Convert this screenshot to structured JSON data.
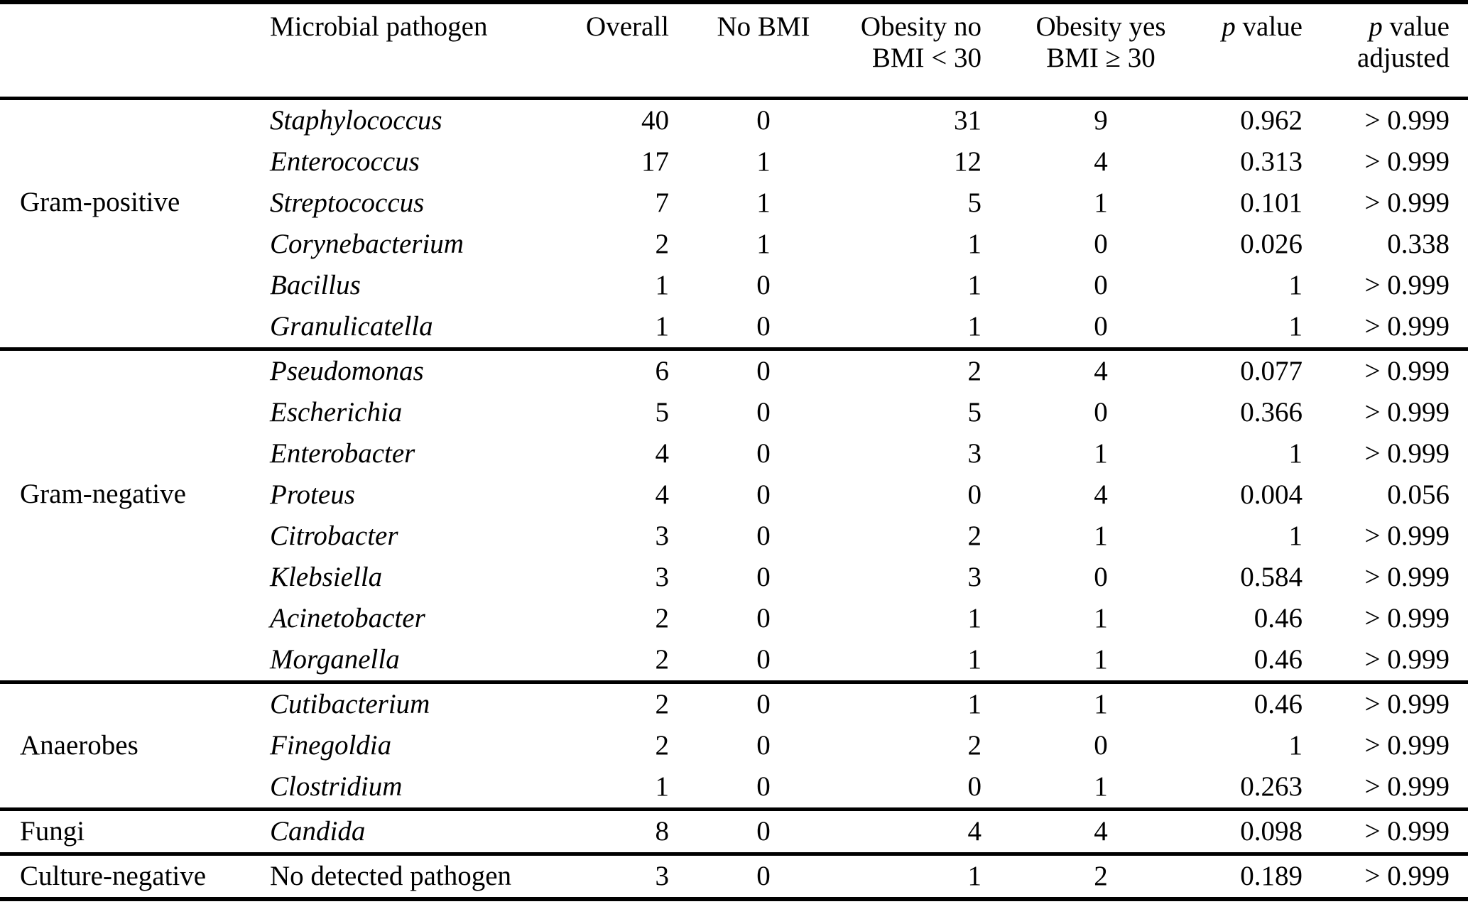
{
  "table": {
    "headers": {
      "pathogen": "Microbial pathogen",
      "overall": "Overall",
      "no_bmi": "No BMI",
      "obesity_no": {
        "line1": "Obesity no",
        "line2": "BMI < 30"
      },
      "obesity_yes": {
        "line1": "Obesity yes",
        "line2": "BMI ≥ 30"
      },
      "p_value": {
        "italic": "p",
        "rest": " value"
      },
      "p_value_adjusted": {
        "italic": "p",
        "rest": " value",
        "line2": "adjusted"
      }
    },
    "groups": [
      {
        "category": "Gram-positive",
        "rows": [
          {
            "pathogen": "Staphylococcus",
            "italic": true,
            "overall": "40",
            "no_bmi": "0",
            "obesity_no": "31",
            "obesity_yes": "9",
            "p": "0.962",
            "p_adj": "> 0.999"
          },
          {
            "pathogen": "Enterococcus",
            "italic": true,
            "overall": "17",
            "no_bmi": "1",
            "obesity_no": "12",
            "obesity_yes": "4",
            "p": "0.313",
            "p_adj": "> 0.999"
          },
          {
            "pathogen": "Streptococcus",
            "italic": true,
            "overall": "7",
            "no_bmi": "1",
            "obesity_no": "5",
            "obesity_yes": "1",
            "p": "0.101",
            "p_adj": "> 0.999"
          },
          {
            "pathogen": "Corynebacterium",
            "italic": true,
            "overall": "2",
            "no_bmi": "1",
            "obesity_no": "1",
            "obesity_yes": "0",
            "p": "0.026",
            "p_adj": "0.338"
          },
          {
            "pathogen": "Bacillus",
            "italic": true,
            "overall": "1",
            "no_bmi": "0",
            "obesity_no": "1",
            "obesity_yes": "0",
            "p": "1",
            "p_adj": "> 0.999"
          },
          {
            "pathogen": "Granulicatella",
            "italic": true,
            "overall": "1",
            "no_bmi": "0",
            "obesity_no": "1",
            "obesity_yes": "0",
            "p": "1",
            "p_adj": "> 0.999"
          }
        ]
      },
      {
        "category": "Gram-negative",
        "rows": [
          {
            "pathogen": "Pseudomonas",
            "italic": true,
            "overall": "6",
            "no_bmi": "0",
            "obesity_no": "2",
            "obesity_yes": "4",
            "p": "0.077",
            "p_adj": "> 0.999"
          },
          {
            "pathogen": "Escherichia",
            "italic": true,
            "overall": "5",
            "no_bmi": "0",
            "obesity_no": "5",
            "obesity_yes": "0",
            "p": "0.366",
            "p_adj": "> 0.999"
          },
          {
            "pathogen": "Enterobacter",
            "italic": true,
            "overall": "4",
            "no_bmi": "0",
            "obesity_no": "3",
            "obesity_yes": "1",
            "p": "1",
            "p_adj": "> 0.999"
          },
          {
            "pathogen": "Proteus",
            "italic": true,
            "overall": "4",
            "no_bmi": "0",
            "obesity_no": "0",
            "obesity_yes": "4",
            "p": "0.004",
            "p_adj": "0.056"
          },
          {
            "pathogen": "Citrobacter",
            "italic": true,
            "overall": "3",
            "no_bmi": "0",
            "obesity_no": "2",
            "obesity_yes": "1",
            "p": "1",
            "p_adj": "> 0.999"
          },
          {
            "pathogen": "Klebsiella",
            "italic": true,
            "overall": "3",
            "no_bmi": "0",
            "obesity_no": "3",
            "obesity_yes": "0",
            "p": "0.584",
            "p_adj": "> 0.999"
          },
          {
            "pathogen": "Acinetobacter",
            "italic": true,
            "overall": "2",
            "no_bmi": "0",
            "obesity_no": "1",
            "obesity_yes": "1",
            "p": "0.46",
            "p_adj": "> 0.999"
          },
          {
            "pathogen": "Morganella",
            "italic": true,
            "overall": "2",
            "no_bmi": "0",
            "obesity_no": "1",
            "obesity_yes": "1",
            "p": "0.46",
            "p_adj": "> 0.999"
          }
        ]
      },
      {
        "category": "Anaerobes",
        "rows": [
          {
            "pathogen": "Cutibacterium",
            "italic": true,
            "overall": "2",
            "no_bmi": "0",
            "obesity_no": "1",
            "obesity_yes": "1",
            "p": "0.46",
            "p_adj": "> 0.999"
          },
          {
            "pathogen": "Finegoldia",
            "italic": true,
            "overall": "2",
            "no_bmi": "0",
            "obesity_no": "2",
            "obesity_yes": "0",
            "p": "1",
            "p_adj": "> 0.999"
          },
          {
            "pathogen": "Clostridium",
            "italic": true,
            "overall": "1",
            "no_bmi": "0",
            "obesity_no": "0",
            "obesity_yes": "1",
            "p": "0.263",
            "p_adj": "> 0.999"
          }
        ]
      },
      {
        "category": "Fungi",
        "rows": [
          {
            "pathogen": "Candida",
            "italic": true,
            "overall": "8",
            "no_bmi": "0",
            "obesity_no": "4",
            "obesity_yes": "4",
            "p": "0.098",
            "p_adj": "> 0.999"
          }
        ]
      },
      {
        "category": "Culture-negative",
        "rows": [
          {
            "pathogen": "No detected pathogen",
            "italic": false,
            "overall": "3",
            "no_bmi": "0",
            "obesity_no": "1",
            "obesity_yes": "2",
            "p": "0.189",
            "p_adj": "> 0.999"
          }
        ]
      }
    ]
  }
}
